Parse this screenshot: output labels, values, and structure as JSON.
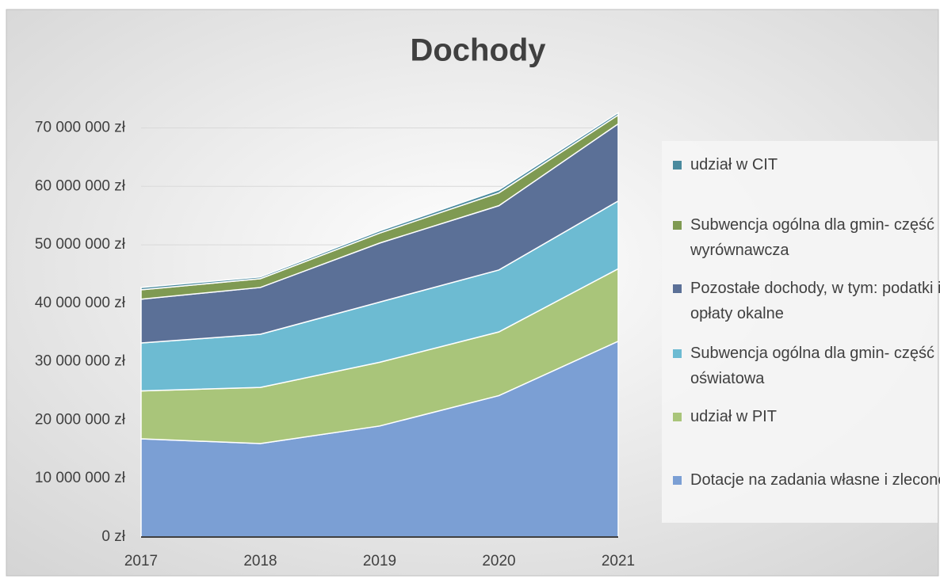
{
  "chart_data": {
    "type": "area",
    "stacked": true,
    "title": "Dochody",
    "categories": [
      "2017",
      "2018",
      "2019",
      "2020",
      "2021"
    ],
    "series": [
      {
        "name": "Dotacje na zadania własne i zlecone",
        "color": "#7b9fd4",
        "values": [
          16800000,
          16000000,
          19000000,
          24200000,
          33500000
        ]
      },
      {
        "name": "udział w PIT",
        "color": "#a9c57a",
        "values": [
          8200000,
          9600000,
          10900000,
          10900000,
          12400000
        ]
      },
      {
        "name": "Subwencja ogólna dla gmin- część oświatowa",
        "color": "#6dbbd2",
        "values": [
          8200000,
          9100000,
          10300000,
          10600000,
          11600000
        ]
      },
      {
        "name": "Pozostałe dochody, w tym: podatki i opłaty okalne",
        "color": "#5b7097",
        "values": [
          7500000,
          8000000,
          10100000,
          11000000,
          13200000
        ]
      },
      {
        "name": "Subwencja ogólna dla gmin- część wyrównawcza",
        "color": "#7f9a52",
        "values": [
          1600000,
          1500000,
          1700000,
          2200000,
          1500000
        ]
      },
      {
        "name": "udział w CIT",
        "color": "#4a8a9e",
        "values": [
          400000,
          300000,
          400000,
          500000,
          400000
        ]
      }
    ],
    "ylim": [
      0,
      74000000
    ],
    "yticks": [
      {
        "value": 0,
        "label": "0 zł"
      },
      {
        "value": 10000000,
        "label": "10 000 000 zł"
      },
      {
        "value": 20000000,
        "label": "20 000 000 zł"
      },
      {
        "value": 30000000,
        "label": "30 000 000 zł"
      },
      {
        "value": 40000000,
        "label": "40 000 000 zł"
      },
      {
        "value": 50000000,
        "label": "50 000 000 zł"
      },
      {
        "value": 60000000,
        "label": "60 000 000 zł"
      },
      {
        "value": 70000000,
        "label": "70 000 000 zł"
      }
    ],
    "grid": true,
    "legend": "right"
  }
}
